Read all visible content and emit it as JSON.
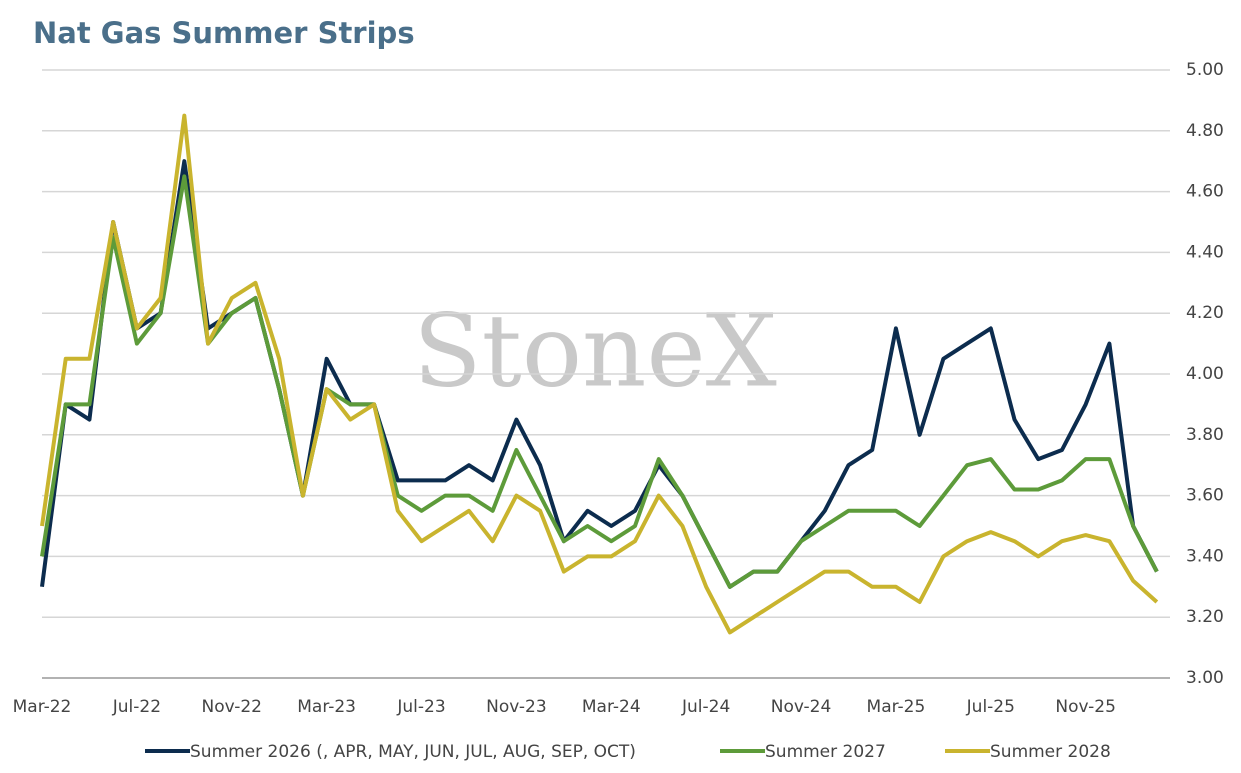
{
  "chart_data": {
    "type": "line",
    "title": "Nat Gas Summer Strips",
    "watermark": "StoneX",
    "categories": [
      "Mar-22",
      null,
      null,
      null,
      "Jul-22",
      null,
      null,
      null,
      "Nov-22",
      null,
      null,
      null,
      "Mar-23",
      null,
      null,
      null,
      "Jul-23",
      null,
      null,
      null,
      "Nov-23",
      null,
      null,
      null,
      "Mar-24",
      null,
      null,
      null,
      "Jul-24",
      null,
      null,
      null,
      "Nov-24",
      null,
      null,
      null,
      "Mar-25",
      null,
      null,
      null,
      "Jul-25",
      null,
      null,
      null,
      "Nov-25",
      null,
      null,
      null
    ],
    "series": [
      {
        "name": "Summer 2026 (, APR, MAY, JUN, JUL, AUG, SEP, OCT)",
        "color": "#0c2c4e",
        "values": [
          3.3,
          3.9,
          3.85,
          4.5,
          4.15,
          4.2,
          4.7,
          4.15,
          4.2,
          4.25,
          3.95,
          3.6,
          4.05,
          3.9,
          3.9,
          3.65,
          3.65,
          3.65,
          3.7,
          3.65,
          3.85,
          3.7,
          3.45,
          3.55,
          3.5,
          3.55,
          3.7,
          3.6,
          3.45,
          3.3,
          3.35,
          3.35,
          3.45,
          3.55,
          3.7,
          3.75,
          4.15,
          3.8,
          4.05,
          4.1,
          4.15,
          3.85,
          3.72,
          3.75,
          3.9,
          4.1,
          3.5,
          3.35
        ]
      },
      {
        "name": "Summer 2027",
        "color": "#5d9b3a",
        "values": [
          3.4,
          3.9,
          3.9,
          4.45,
          4.1,
          4.2,
          4.65,
          4.1,
          4.2,
          4.25,
          3.95,
          3.6,
          3.95,
          3.9,
          3.9,
          3.6,
          3.55,
          3.6,
          3.6,
          3.55,
          3.75,
          3.6,
          3.45,
          3.5,
          3.45,
          3.5,
          3.72,
          3.6,
          3.45,
          3.3,
          3.35,
          3.35,
          3.45,
          3.5,
          3.55,
          3.55,
          3.55,
          3.5,
          3.6,
          3.7,
          3.72,
          3.62,
          3.62,
          3.65,
          3.72,
          3.72,
          3.5,
          3.35
        ]
      },
      {
        "name": "Summer 2028",
        "color": "#c9b42e",
        "values": [
          3.5,
          4.05,
          4.05,
          4.5,
          4.15,
          4.25,
          4.85,
          4.1,
          4.25,
          4.3,
          4.05,
          3.6,
          3.95,
          3.85,
          3.9,
          3.55,
          3.45,
          3.5,
          3.55,
          3.45,
          3.6,
          3.55,
          3.35,
          3.4,
          3.4,
          3.45,
          3.6,
          3.5,
          3.3,
          3.15,
          3.2,
          3.25,
          3.3,
          3.35,
          3.35,
          3.3,
          3.3,
          3.25,
          3.4,
          3.45,
          3.48,
          3.45,
          3.4,
          3.45,
          3.47,
          3.45,
          3.32,
          3.25
        ]
      }
    ],
    "ylim": [
      3.0,
      5.0
    ],
    "yticks": [
      {
        "value": 3.0,
        "label": "3.00"
      },
      {
        "value": 3.2,
        "label": "3.20"
      },
      {
        "value": 3.4,
        "label": "3.40"
      },
      {
        "value": 3.6,
        "label": "3.60"
      },
      {
        "value": 3.8,
        "label": "3.80"
      },
      {
        "value": 4.0,
        "label": "4.00"
      },
      {
        "value": 4.2,
        "label": "4.20"
      },
      {
        "value": 4.4,
        "label": "4.40"
      },
      {
        "value": 4.6,
        "label": "4.60"
      },
      {
        "value": 4.8,
        "label": "4.80"
      },
      {
        "value": 5.0,
        "label": "5.00"
      }
    ],
    "grid": true,
    "legend": "bottom"
  }
}
